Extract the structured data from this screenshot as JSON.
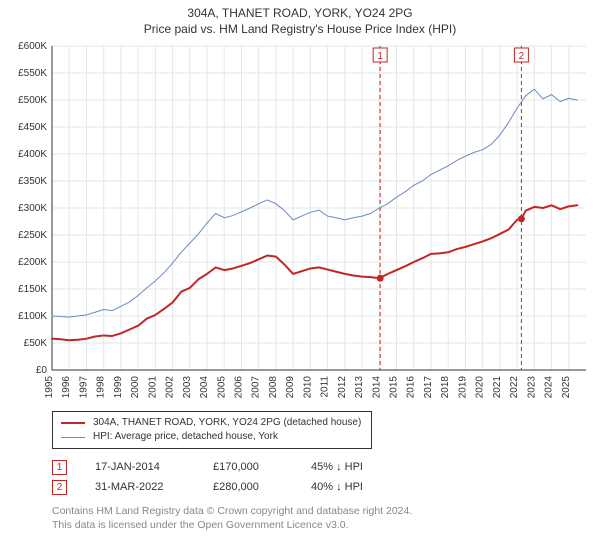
{
  "title_line1": "304A, THANET ROAD, YORK, YO24 2PG",
  "title_line2": "Price paid vs. HM Land Registry's House Price Index (HPI)",
  "title_fontsize": 12,
  "title_color": "#333333",
  "chart": {
    "type": "line",
    "background_color": "#ffffff",
    "plot_border_color": "#333333",
    "grid_color": "#e6e6e6",
    "grid_on": true,
    "x_axis": {
      "min": 1995,
      "max": 2026,
      "tick_step": 1,
      "label_fontsize": 10,
      "label_color": "#333333",
      "label_rotation": -90
    },
    "y_axis": {
      "min": 0,
      "max": 600000,
      "tick_step": 50000,
      "prefix": "£",
      "suffix_thousands": "K",
      "label_fontsize": 10,
      "label_color": "#333333"
    },
    "series": [
      {
        "name": "property",
        "legend_label": "304A, THANET ROAD, YORK, YO24 2PG (detached house)",
        "color": "#c22626",
        "line_width": 2,
        "points": [
          [
            1995.0,
            58000
          ],
          [
            1995.5,
            57000
          ],
          [
            1996.0,
            55000
          ],
          [
            1996.5,
            56000
          ],
          [
            1997.0,
            58000
          ],
          [
            1997.5,
            62000
          ],
          [
            1998.0,
            64000
          ],
          [
            1998.5,
            63000
          ],
          [
            1999.0,
            68000
          ],
          [
            1999.5,
            75000
          ],
          [
            2000.0,
            82000
          ],
          [
            2000.5,
            95000
          ],
          [
            2001.0,
            102000
          ],
          [
            2001.5,
            113000
          ],
          [
            2002.0,
            125000
          ],
          [
            2002.5,
            145000
          ],
          [
            2003.0,
            152000
          ],
          [
            2003.5,
            168000
          ],
          [
            2004.0,
            178000
          ],
          [
            2004.5,
            190000
          ],
          [
            2005.0,
            185000
          ],
          [
            2005.5,
            188000
          ],
          [
            2006.0,
            193000
          ],
          [
            2006.5,
            198000
          ],
          [
            2007.0,
            205000
          ],
          [
            2007.5,
            212000
          ],
          [
            2008.0,
            210000
          ],
          [
            2008.5,
            195000
          ],
          [
            2009.0,
            178000
          ],
          [
            2009.5,
            183000
          ],
          [
            2010.0,
            188000
          ],
          [
            2010.5,
            190000
          ],
          [
            2011.0,
            186000
          ],
          [
            2011.5,
            182000
          ],
          [
            2012.0,
            178000
          ],
          [
            2012.5,
            175000
          ],
          [
            2013.0,
            173000
          ],
          [
            2013.5,
            172000
          ],
          [
            2014.0,
            170000
          ],
          [
            2014.5,
            178000
          ],
          [
            2015.0,
            185000
          ],
          [
            2015.5,
            192000
          ],
          [
            2016.0,
            200000
          ],
          [
            2016.5,
            207000
          ],
          [
            2017.0,
            215000
          ],
          [
            2017.5,
            216000
          ],
          [
            2018.0,
            218000
          ],
          [
            2018.5,
            224000
          ],
          [
            2019.0,
            228000
          ],
          [
            2019.5,
            233000
          ],
          [
            2020.0,
            238000
          ],
          [
            2020.5,
            244000
          ],
          [
            2021.0,
            252000
          ],
          [
            2021.5,
            260000
          ],
          [
            2022.0,
            278000
          ],
          [
            2022.25,
            280000
          ],
          [
            2022.5,
            295000
          ],
          [
            2023.0,
            302000
          ],
          [
            2023.5,
            300000
          ],
          [
            2024.0,
            305000
          ],
          [
            2024.5,
            298000
          ],
          [
            2025.0,
            303000
          ],
          [
            2025.5,
            305000
          ]
        ]
      },
      {
        "name": "hpi",
        "legend_label": "HPI: Average price, detached house, York",
        "color": "#6a8bc4",
        "line_width": 1,
        "points": [
          [
            1995.0,
            100000
          ],
          [
            1995.5,
            99000
          ],
          [
            1996.0,
            98000
          ],
          [
            1996.5,
            100000
          ],
          [
            1997.0,
            102000
          ],
          [
            1997.5,
            107000
          ],
          [
            1998.0,
            112000
          ],
          [
            1998.5,
            110000
          ],
          [
            1999.0,
            118000
          ],
          [
            1999.5,
            126000
          ],
          [
            2000.0,
            138000
          ],
          [
            2000.5,
            152000
          ],
          [
            2001.0,
            165000
          ],
          [
            2001.5,
            180000
          ],
          [
            2002.0,
            198000
          ],
          [
            2002.5,
            218000
          ],
          [
            2003.0,
            235000
          ],
          [
            2003.5,
            252000
          ],
          [
            2004.0,
            272000
          ],
          [
            2004.5,
            290000
          ],
          [
            2005.0,
            282000
          ],
          [
            2005.5,
            286000
          ],
          [
            2006.0,
            293000
          ],
          [
            2006.5,
            300000
          ],
          [
            2007.0,
            308000
          ],
          [
            2007.5,
            315000
          ],
          [
            2008.0,
            308000
          ],
          [
            2008.5,
            295000
          ],
          [
            2009.0,
            278000
          ],
          [
            2009.5,
            285000
          ],
          [
            2010.0,
            292000
          ],
          [
            2010.5,
            296000
          ],
          [
            2011.0,
            285000
          ],
          [
            2011.5,
            282000
          ],
          [
            2012.0,
            278000
          ],
          [
            2012.5,
            282000
          ],
          [
            2013.0,
            285000
          ],
          [
            2013.5,
            290000
          ],
          [
            2014.0,
            300000
          ],
          [
            2014.5,
            308000
          ],
          [
            2015.0,
            320000
          ],
          [
            2015.5,
            330000
          ],
          [
            2016.0,
            342000
          ],
          [
            2016.5,
            350000
          ],
          [
            2017.0,
            362000
          ],
          [
            2017.5,
            370000
          ],
          [
            2018.0,
            378000
          ],
          [
            2018.5,
            388000
          ],
          [
            2019.0,
            396000
          ],
          [
            2019.5,
            403000
          ],
          [
            2020.0,
            408000
          ],
          [
            2020.5,
            418000
          ],
          [
            2021.0,
            435000
          ],
          [
            2021.5,
            458000
          ],
          [
            2022.0,
            485000
          ],
          [
            2022.5,
            508000
          ],
          [
            2023.0,
            520000
          ],
          [
            2023.5,
            502000
          ],
          [
            2024.0,
            510000
          ],
          [
            2024.5,
            497000
          ],
          [
            2025.0,
            503000
          ],
          [
            2025.5,
            500000
          ]
        ]
      }
    ],
    "event_markers": [
      {
        "label": "1",
        "x": 2014.05,
        "color": "#c22626",
        "dash": "4 3",
        "point_y": 170000,
        "point_radius": 3.5
      },
      {
        "label": "2",
        "x": 2022.25,
        "color": "#c22626",
        "dash": "4 3",
        "point_y": 280000,
        "point_radius": 3.5
      }
    ]
  },
  "legend": {
    "border_color": "#333333",
    "fontsize": 10
  },
  "markers_table": {
    "rows": [
      {
        "num": "1",
        "date": "17-JAN-2014",
        "price": "£170,000",
        "pct": "45% ↓ HPI"
      },
      {
        "num": "2",
        "date": "31-MAR-2022",
        "price": "£280,000",
        "pct": "40% ↓ HPI"
      }
    ],
    "marker_border_color": "#c22626",
    "marker_text_color": "#c22626",
    "fontsize": 11
  },
  "footnote_line1": "Contains HM Land Registry data © Crown copyright and database right 2024.",
  "footnote_line2": "This data is licensed under the Open Government Licence v3.0.",
  "footnote_color": "#888888",
  "footnote_fontsize": 10.5
}
